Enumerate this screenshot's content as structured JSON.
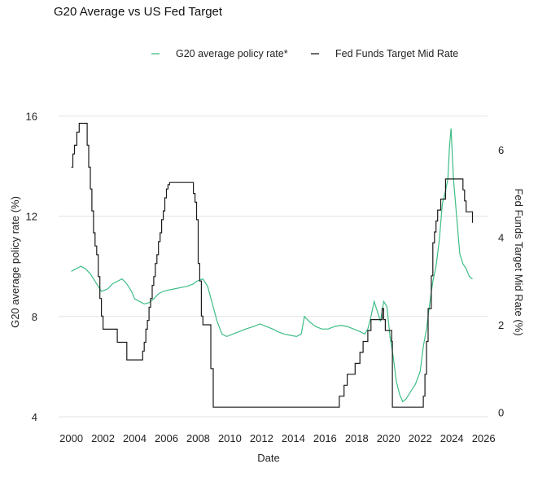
{
  "chart_data": {
    "type": "line",
    "title": "G20 Average vs US Fed Target",
    "xlabel": "Date",
    "ylabel_left": "G20 average policy rate (%)",
    "ylabel_right": "Fed Funds Target Mid Rate (%)",
    "xlim": [
      1999.2,
      2026.3
    ],
    "ylim_left": [
      4,
      16.4
    ],
    "ylim_right": [
      -0.1,
      7.0
    ],
    "xticks": [
      "2000",
      "2002",
      "2004",
      "2006",
      "2008",
      "2010",
      "2012",
      "2014",
      "2016",
      "2018",
      "2020",
      "2022",
      "2024",
      "2026"
    ],
    "yticks_left": [
      "4",
      "8",
      "12",
      "16"
    ],
    "yticks_right": [
      "0",
      "2",
      "4",
      "6"
    ],
    "grid": "horizontal",
    "legend_position": "top-right",
    "colors": {
      "g20": "#3dbd86",
      "fed": "#1a1a1a",
      "grid": "#e3e3e3"
    },
    "series": [
      {
        "name": "G20 average policy rate*",
        "axis": "left",
        "color": "#3dbd86",
        "x": [
          2000.0,
          2000.3,
          2000.6,
          2000.9,
          2001.2,
          2001.5,
          2001.7,
          2001.9,
          2002.3,
          2002.6,
          2002.9,
          2003.2,
          2003.5,
          2003.8,
          2004.0,
          2004.3,
          2004.6,
          2004.9,
          2005.2,
          2005.5,
          2005.8,
          2006.1,
          2006.5,
          2006.9,
          2007.3,
          2007.7,
          2007.9,
          2008.1,
          2008.3,
          2008.6,
          2008.9,
          2009.2,
          2009.5,
          2009.8,
          2010.2,
          2010.6,
          2011.0,
          2011.5,
          2011.9,
          2012.3,
          2012.7,
          2013.0,
          2013.4,
          2013.8,
          2014.2,
          2014.5,
          2014.7,
          2015.0,
          2015.4,
          2015.8,
          2016.2,
          2016.6,
          2017.0,
          2017.4,
          2017.8,
          2018.2,
          2018.5,
          2018.7,
          2018.9,
          2019.1,
          2019.3,
          2019.5,
          2019.7,
          2019.9,
          2020.1,
          2020.3,
          2020.5,
          2020.7,
          2020.9,
          2021.1,
          2021.4,
          2021.7,
          2022.0,
          2022.2,
          2022.4,
          2022.6,
          2022.8,
          2023.0,
          2023.2,
          2023.4,
          2023.6,
          2023.75,
          2023.85,
          2023.95,
          2024.1,
          2024.3,
          2024.5,
          2024.7,
          2024.9,
          2025.1,
          2025.3
        ],
        "values": [
          9.8,
          9.9,
          10.0,
          9.9,
          9.7,
          9.4,
          9.2,
          9.0,
          9.1,
          9.3,
          9.4,
          9.5,
          9.3,
          9.0,
          8.7,
          8.6,
          8.5,
          8.55,
          8.7,
          8.9,
          9.0,
          9.05,
          9.1,
          9.15,
          9.2,
          9.3,
          9.4,
          9.45,
          9.5,
          9.2,
          8.5,
          7.8,
          7.3,
          7.2,
          7.3,
          7.4,
          7.5,
          7.6,
          7.7,
          7.6,
          7.5,
          7.4,
          7.3,
          7.25,
          7.2,
          7.3,
          8.0,
          7.8,
          7.6,
          7.5,
          7.5,
          7.6,
          7.65,
          7.6,
          7.5,
          7.4,
          7.3,
          7.5,
          8.0,
          8.6,
          8.2,
          7.8,
          8.6,
          8.4,
          7.2,
          6.4,
          5.4,
          4.9,
          4.6,
          4.7,
          5.0,
          5.3,
          5.8,
          6.8,
          7.5,
          8.5,
          9.4,
          10.0,
          11.0,
          12.5,
          13.0,
          13.5,
          14.8,
          15.5,
          13.5,
          12.0,
          10.5,
          10.1,
          9.9,
          9.6,
          9.5
        ]
      },
      {
        "name": "Fed Funds Target Mid Rate",
        "axis": "right",
        "color": "#1a1a1a",
        "x": [
          2000.0,
          2000.1,
          2000.2,
          2000.35,
          2000.5,
          2001.0,
          2001.1,
          2001.2,
          2001.3,
          2001.4,
          2001.5,
          2001.6,
          2001.7,
          2001.8,
          2001.9,
          2002.0,
          2002.9,
          2003.5,
          2004.5,
          2004.6,
          2004.7,
          2004.8,
          2004.9,
          2005.0,
          2005.1,
          2005.2,
          2005.3,
          2005.4,
          2005.5,
          2005.6,
          2005.7,
          2005.8,
          2005.9,
          2006.0,
          2006.1,
          2006.2,
          2006.3,
          2006.5,
          2007.7,
          2007.8,
          2007.9,
          2008.0,
          2008.1,
          2008.2,
          2008.3,
          2008.8,
          2008.95,
          2015.9,
          2016.9,
          2017.2,
          2017.4,
          2017.9,
          2018.2,
          2018.4,
          2018.7,
          2018.9,
          2019.6,
          2019.7,
          2019.8,
          2020.2,
          2020.25,
          2022.2,
          2022.3,
          2022.4,
          2022.5,
          2022.7,
          2022.8,
          2022.9,
          2023.0,
          2023.1,
          2023.3,
          2023.6,
          2024.7,
          2024.8,
          2024.9,
          2025.3
        ],
        "values": [
          5.6,
          5.9,
          6.1,
          6.4,
          6.6,
          6.1,
          5.6,
          5.1,
          4.6,
          4.1,
          3.8,
          3.6,
          3.1,
          2.6,
          2.2,
          1.9,
          1.6,
          1.2,
          1.4,
          1.6,
          1.9,
          2.1,
          2.4,
          2.6,
          2.9,
          3.1,
          3.4,
          3.6,
          3.9,
          4.1,
          4.4,
          4.6,
          4.9,
          5.1,
          5.2,
          5.25,
          5.25,
          5.25,
          5.0,
          4.8,
          4.4,
          3.4,
          3.0,
          2.2,
          2.0,
          1.0,
          0.12,
          0.12,
          0.37,
          0.62,
          0.87,
          1.12,
          1.37,
          1.62,
          1.87,
          2.12,
          2.37,
          2.12,
          1.87,
          1.62,
          0.12,
          0.37,
          0.87,
          1.62,
          2.37,
          3.12,
          3.87,
          4.12,
          4.37,
          4.62,
          4.87,
          5.33,
          5.08,
          4.83,
          4.58,
          4.33
        ]
      }
    ]
  }
}
